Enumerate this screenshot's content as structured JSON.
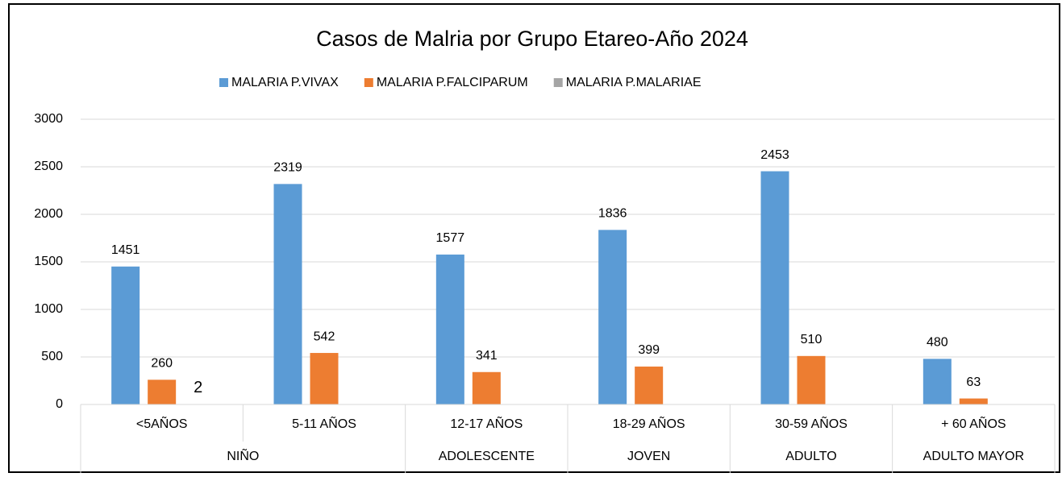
{
  "chart_data": {
    "type": "bar",
    "title": "Casos de Malria por Grupo Etareo-Año 2024",
    "groups": [
      {
        "name": "NIÑO",
        "categories": [
          "<5AÑOS",
          "5-11 AÑOS"
        ]
      },
      {
        "name": "ADOLESCENTE",
        "categories": [
          "12-17 AÑOS"
        ]
      },
      {
        "name": "JOVEN",
        "categories": [
          "18-29 AÑOS"
        ]
      },
      {
        "name": "ADULTO",
        "categories": [
          "30-59 AÑOS"
        ]
      },
      {
        "name": "ADULTO MAYOR",
        "categories": [
          "+ 60 AÑOS"
        ]
      }
    ],
    "series": [
      {
        "name": "MALARIA P.VIVAX",
        "color": "#5b9bd5",
        "values": [
          1451,
          2319,
          1577,
          1836,
          2453,
          480
        ]
      },
      {
        "name": "MALARIA P.FALCIPARUM",
        "color": "#ed7d31",
        "values": [
          260,
          542,
          341,
          399,
          510,
          63
        ]
      },
      {
        "name": "MALARIA P.MALARIAE",
        "color": "#a5a5a5",
        "values": [
          2,
          null,
          null,
          null,
          null,
          null
        ]
      }
    ],
    "ylim": [
      0,
      3000
    ],
    "yticks": [
      0,
      500,
      1000,
      1500,
      2000,
      2500,
      3000
    ],
    "grid": true,
    "legend": "top"
  }
}
